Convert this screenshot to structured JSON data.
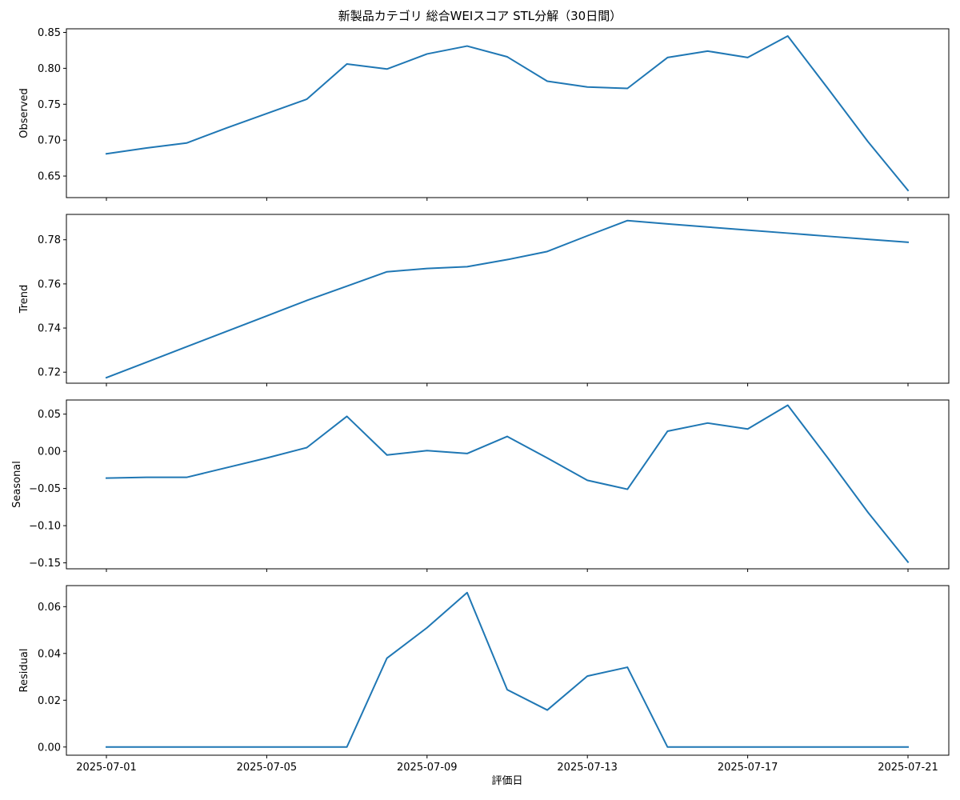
{
  "chart_data": {
    "type": "line",
    "title": "新製品カテゴリ 総合WEIスコア STL分解（30日間）",
    "xlabel": "評価日",
    "x": [
      "2025-07-01",
      "2025-07-02",
      "2025-07-03",
      "2025-07-04",
      "2025-07-05",
      "2025-07-06",
      "2025-07-07",
      "2025-07-08",
      "2025-07-09",
      "2025-07-10",
      "2025-07-11",
      "2025-07-12",
      "2025-07-13",
      "2025-07-14",
      "2025-07-15",
      "2025-07-16",
      "2025-07-17",
      "2025-07-18",
      "2025-07-19",
      "2025-07-20",
      "2025-07-21"
    ],
    "xticks": [
      "2025-07-01",
      "2025-07-05",
      "2025-07-09",
      "2025-07-13",
      "2025-07-17",
      "2025-07-21"
    ],
    "line_color": "#1f77b4",
    "panels": [
      {
        "ylabel": "Observed",
        "ylim": [
          0.62,
          0.855
        ],
        "yticks": [
          "0.65",
          "0.70",
          "0.75",
          "0.80",
          "0.85"
        ],
        "values": [
          0.681,
          0.689,
          0.696,
          0.717,
          0.737,
          0.757,
          0.806,
          0.799,
          0.82,
          0.831,
          0.816,
          0.782,
          0.774,
          0.772,
          0.815,
          0.824,
          0.815,
          0.845,
          0.772,
          0.698,
          0.63
        ]
      },
      {
        "ylabel": "Trend",
        "ylim": [
          0.715,
          0.7915
        ],
        "yticks": [
          "0.72",
          "0.74",
          "0.76",
          "0.78"
        ],
        "values": [
          0.7175,
          0.7245,
          0.7315,
          0.7385,
          0.7455,
          0.7525,
          0.759,
          0.7655,
          0.767,
          0.7678,
          0.771,
          0.7747,
          0.7818,
          0.7887,
          0.7872,
          0.7858,
          0.7844,
          0.783,
          0.7816,
          0.7802,
          0.7789
        ]
      },
      {
        "ylabel": "Seasonal",
        "ylim": [
          -0.158,
          0.069
        ],
        "yticks": [
          "0.05",
          "0.00",
          "−0.05",
          "−0.10",
          "−0.15"
        ],
        "values": [
          -0.036,
          -0.035,
          -0.035,
          -0.022,
          -0.009,
          0.005,
          0.047,
          -0.005,
          0.001,
          -0.003,
          0.02,
          -0.009,
          -0.039,
          -0.051,
          0.027,
          0.038,
          0.03,
          0.062,
          -0.009,
          -0.082,
          -0.149
        ]
      },
      {
        "ylabel": "Residual",
        "ylim": [
          -0.0035,
          0.069
        ],
        "yticks": [
          "0.00",
          "0.02",
          "0.04",
          "0.06"
        ],
        "values": [
          0,
          0,
          0,
          0,
          0,
          0,
          0,
          0.038,
          0.051,
          0.066,
          0.0245,
          0.0158,
          0.0303,
          0.0341,
          0,
          0,
          0,
          0,
          0,
          0,
          0
        ]
      }
    ]
  }
}
